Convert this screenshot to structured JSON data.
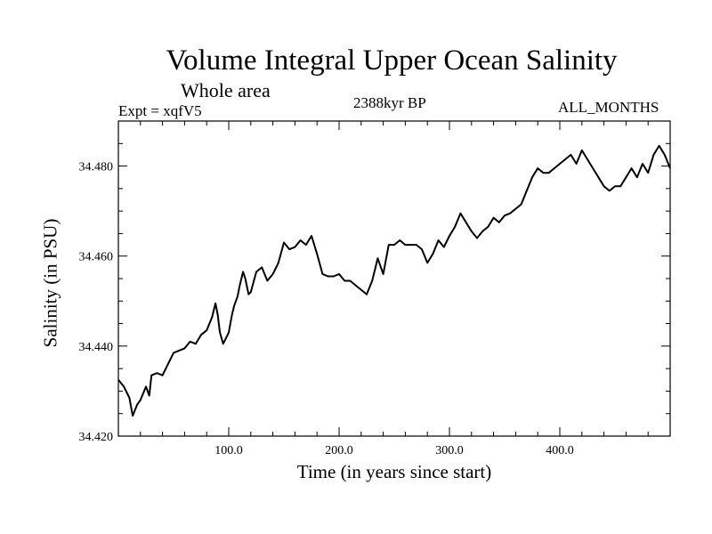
{
  "header": {
    "title": "Volume Integral Upper Ocean Salinity",
    "subtitle": "Whole area",
    "experiment": "Expt = xqfV5",
    "date": "2388kyr BP",
    "period": "ALL_MONTHS"
  },
  "chart_data": {
    "type": "line",
    "title": "Volume Integral Upper Ocean Salinity",
    "xlabel": "Time (in years since start)",
    "ylabel": "Salinity (in PSU)",
    "xlim": [
      0,
      500
    ],
    "ylim": [
      34.42,
      34.49
    ],
    "x_ticks": [
      100,
      200,
      300,
      400
    ],
    "x_tick_labels": [
      "100.0",
      "200.0",
      "300.0",
      "400.0"
    ],
    "y_ticks": [
      34.42,
      34.44,
      34.46,
      34.48
    ],
    "y_tick_labels": [
      "34.420",
      "34.440",
      "34.460",
      "34.480"
    ],
    "series": [
      {
        "name": "Salinity",
        "x": [
          0,
          5,
          10,
          13,
          17,
          20,
          25,
          28,
          30,
          35,
          40,
          45,
          50,
          55,
          60,
          65,
          70,
          75,
          80,
          85,
          88,
          90,
          92,
          95,
          100,
          103,
          105,
          108,
          110,
          113,
          115,
          118,
          120,
          125,
          130,
          135,
          140,
          145,
          150,
          155,
          160,
          165,
          170,
          175,
          180,
          185,
          190,
          195,
          200,
          205,
          210,
          215,
          220,
          225,
          230,
          235,
          240,
          245,
          250,
          255,
          260,
          265,
          270,
          275,
          280,
          285,
          290,
          295,
          300,
          305,
          310,
          315,
          320,
          325,
          330,
          335,
          340,
          345,
          350,
          355,
          360,
          365,
          370,
          375,
          380,
          385,
          390,
          395,
          400,
          405,
          410,
          415,
          420,
          425,
          430,
          435,
          440,
          445,
          450,
          455,
          460,
          465,
          470,
          475,
          480,
          485,
          490,
          495,
          500
        ],
        "values": [
          34.4325,
          34.431,
          34.4285,
          34.4245,
          34.427,
          34.428,
          34.431,
          34.429,
          34.4335,
          34.434,
          34.4335,
          34.436,
          34.4385,
          34.439,
          34.4395,
          34.441,
          34.4405,
          34.4425,
          34.4435,
          34.4465,
          34.4495,
          34.447,
          34.443,
          34.4405,
          34.443,
          34.447,
          34.449,
          34.451,
          34.4535,
          34.4565,
          34.455,
          34.4515,
          34.452,
          34.4565,
          34.4575,
          34.4545,
          34.456,
          34.4585,
          34.463,
          34.4615,
          34.462,
          34.4635,
          34.4625,
          34.4645,
          34.4605,
          34.456,
          34.4555,
          34.4555,
          34.456,
          34.4545,
          34.4545,
          34.4535,
          34.4525,
          34.4515,
          34.4545,
          34.4595,
          34.456,
          34.4625,
          34.4625,
          34.4635,
          34.4625,
          34.4625,
          34.4625,
          34.4615,
          34.4585,
          34.4605,
          34.4635,
          34.462,
          34.4645,
          34.4665,
          34.4695,
          34.4675,
          34.4655,
          34.464,
          34.4655,
          34.4665,
          34.4685,
          34.4675,
          34.469,
          34.4695,
          34.4705,
          34.4715,
          34.4745,
          34.4775,
          34.4795,
          34.4785,
          34.4785,
          34.4795,
          34.4805,
          34.4815,
          34.4825,
          34.4805,
          34.4835,
          34.4815,
          34.4795,
          34.4775,
          34.4755,
          34.4745,
          34.4755,
          34.4755,
          34.4775,
          34.4795,
          34.4775,
          34.4805,
          34.4785,
          34.4825,
          34.4845,
          34.4825,
          34.4795
        ]
      }
    ],
    "grid": false
  }
}
